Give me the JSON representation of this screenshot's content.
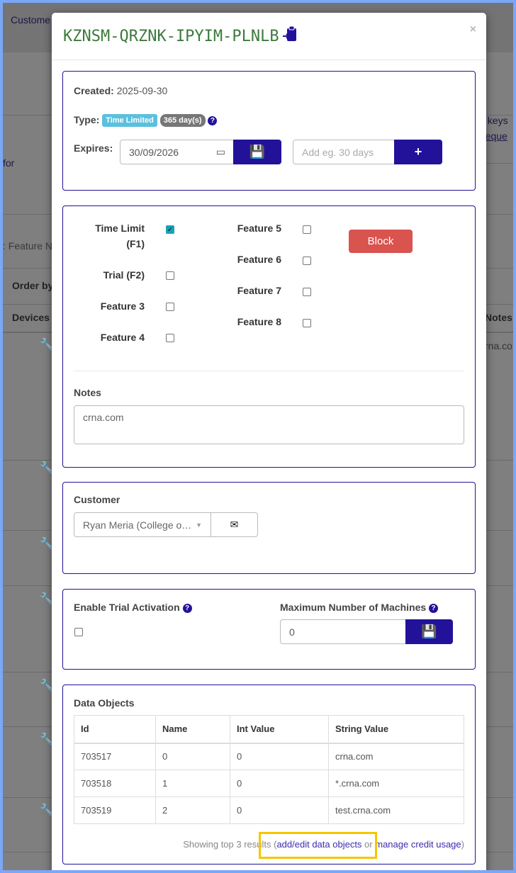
{
  "background": {
    "customer_crumb": "Custome",
    "for_text": "for",
    "keys_text": "t keys",
    "request_text": "reque",
    "feature_text": ": Feature N",
    "order_by": "Order by",
    "devices": "Devices",
    "notes_col": "Notes",
    "notes_cell": "rna.co"
  },
  "modal": {
    "title": "KZNSM-QRZNK-IPYIM-PLNLB",
    "title_icon": "clipboard-import-icon",
    "close": "×"
  },
  "info": {
    "created_label": "Created:",
    "created_value": "2025-09-30",
    "type_label": "Type:",
    "type_badge": "Time Limited",
    "duration_badge": "365 day(s)",
    "expires_label": "Expires:",
    "expires_value": "30/09/2026",
    "add_days_placeholder": "Add eg. 30 days",
    "add_button": "+",
    "colors": {
      "type_badge": "#5bc0de",
      "duration_badge": "#777777",
      "primary": "#22129a"
    }
  },
  "features": {
    "items": [
      {
        "label": "Time Limit (F1)",
        "checked": true
      },
      {
        "label": "Trial (F2)",
        "checked": false
      },
      {
        "label": "Feature 3",
        "checked": false
      },
      {
        "label": "Feature 4",
        "checked": false
      },
      {
        "label": "Feature 5",
        "checked": false
      },
      {
        "label": "Feature 6",
        "checked": false
      },
      {
        "label": "Feature 7",
        "checked": false
      },
      {
        "label": "Feature 8",
        "checked": false
      }
    ],
    "block_button": "Block",
    "notes_label": "Notes",
    "notes_value": "crna.com"
  },
  "customer": {
    "label": "Customer",
    "selected": "Ryan Meria (College o…"
  },
  "trial": {
    "label": "Enable Trial Activation",
    "checked": false,
    "max_label": "Maximum Number of Machines",
    "max_value": "0"
  },
  "data_objects": {
    "label": "Data Objects",
    "columns": [
      "Id",
      "Name",
      "Int Value",
      "String Value"
    ],
    "rows": [
      [
        "703517",
        "0",
        "0",
        "crna.com"
      ],
      [
        "703518",
        "1",
        "0",
        "*.crna.com"
      ],
      [
        "703519",
        "2",
        "0",
        "test.crna.com"
      ]
    ],
    "footer_prefix": "Showing top 3 results (",
    "add_edit_link": "add/edit data objects",
    "or": " or ",
    "credit_link": "manage credit usage",
    "footer_suffix": ")"
  }
}
